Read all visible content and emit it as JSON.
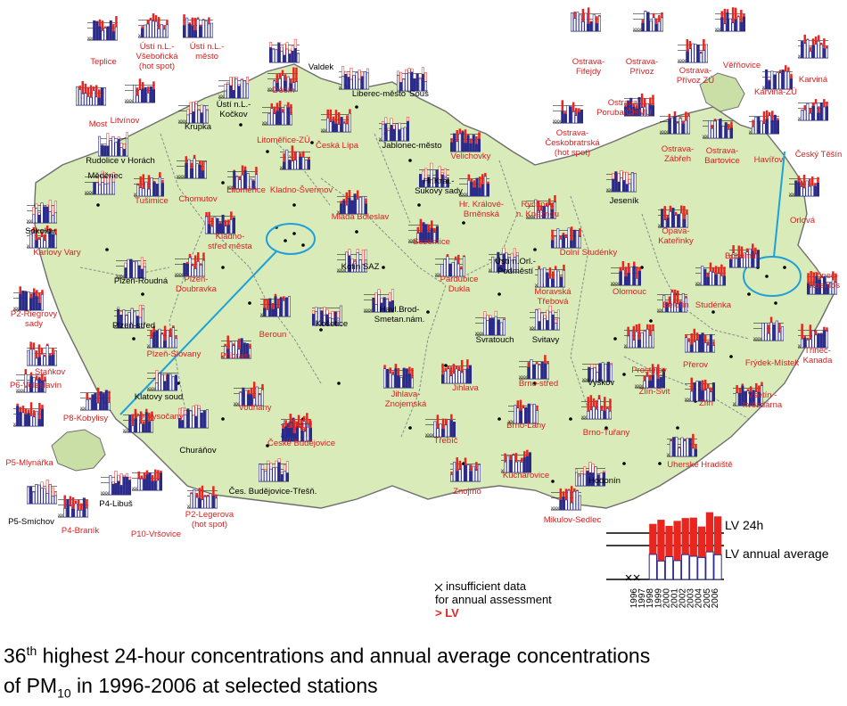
{
  "caption": {
    "line1_num": "36",
    "line1_sup": "th",
    "line1_rest": " highest 24-hour concentrations and annual average concentrations",
    "line2_pre": "of PM",
    "line2_sub": "10",
    "line2_rest": "  in 1996-2006 at selected stations"
  },
  "colors": {
    "land": "#d8ebb9",
    "border": "#6e6e6e",
    "exceed": "#e8261f",
    "below": "#ffffff",
    "annual": "#2a2a8a",
    "label_exceed": "#d62020",
    "label_normal": "#000000",
    "connector": "#1ea0d8"
  },
  "legend": {
    "lv24": "LV 24h",
    "lvannual": "LV annual average",
    "insufficient_line1": "insufficient data",
    "insufficient_line2": "for annual assessment",
    "exceed": "> LV",
    "years": [
      "1996",
      "1997",
      "1998",
      "1999",
      "2000",
      "2001",
      "2002",
      "2003",
      "2004",
      "2005",
      "2006"
    ]
  },
  "stations": [
    {
      "n": "Teplice",
      "e": true
    },
    {
      "n": "Ústí n.L.-\nVšebořická\n(hot spot)",
      "e": true
    },
    {
      "n": "Ústí n.L.-\nměsto",
      "e": true
    },
    {
      "n": "Valdek",
      "e": false
    },
    {
      "n": "Litvínov",
      "e": true
    },
    {
      "n": "Ústí n.L.-\nKočkov",
      "e": false
    },
    {
      "n": "Děčín",
      "e": true
    },
    {
      "n": "Liberec-město",
      "e": false
    },
    {
      "n": "Souš",
      "e": false
    },
    {
      "n": "Most",
      "e": true
    },
    {
      "n": "Krupka",
      "e": false
    },
    {
      "n": "Litoměřice-ZÚ",
      "e": true
    },
    {
      "n": "Česká Lípa",
      "e": true
    },
    {
      "n": "Jablonec-město",
      "e": false
    },
    {
      "n": "Rudolice v Horách",
      "e": false
    },
    {
      "n": "Velichovky",
      "e": true
    },
    {
      "n": "Měděnec",
      "e": false
    },
    {
      "n": "Chomutov",
      "e": true
    },
    {
      "n": "Litoměřice",
      "e": true
    },
    {
      "n": "Kladno-Švermov",
      "e": true
    },
    {
      "n": "Mladá Boleslav",
      "e": true
    },
    {
      "n": "Hr.Král.-\nSukovy sady",
      "e": false
    },
    {
      "n": "Hr. Králové-\nBrněnská",
      "e": true
    },
    {
      "n": "Rychnov\nn. Kněžnou",
      "e": true
    },
    {
      "n": "Sokolov",
      "e": false
    },
    {
      "n": "Tušimice",
      "e": true
    },
    {
      "n": "Karlovy Vary",
      "e": true
    },
    {
      "n": "Kladno-\nstřed města",
      "e": true
    },
    {
      "n": "Kolín SAZ",
      "e": false
    },
    {
      "n": "Sezemice",
      "e": true
    },
    {
      "n": "Pardubice\nDukla",
      "e": true
    },
    {
      "n": "Ústí n.Orl.-\nPodměstí",
      "e": false
    },
    {
      "n": "Moravská\nTřebová",
      "e": true
    },
    {
      "n": "Dolní Studénky",
      "e": true
    },
    {
      "n": "Plzeň-Roudná",
      "e": false
    },
    {
      "n": "Plzeň-\nDoubravka",
      "e": true
    },
    {
      "n": "P2-Riegrovy\nsady",
      "e": true
    },
    {
      "n": "Plzeň-střed",
      "e": false
    },
    {
      "n": "Beroun",
      "e": true
    },
    {
      "n": "Košetice",
      "e": false
    },
    {
      "n": "Havl.Brod-\nSmetan.nám.",
      "e": false
    },
    {
      "n": "Svratouch",
      "e": false
    },
    {
      "n": "Svitavy",
      "e": false
    },
    {
      "n": "Plzeň-Slovany",
      "e": true
    },
    {
      "n": "Příbram",
      "e": true
    },
    {
      "n": "Staňkov",
      "e": true
    },
    {
      "n": "P6-Veleslavín",
      "e": true
    },
    {
      "n": "Klatovy soud",
      "e": false
    },
    {
      "n": "P8-Kobylisy",
      "e": true
    },
    {
      "n": "Vodňany",
      "e": true
    },
    {
      "n": "Tábor",
      "e": true
    },
    {
      "n": "Jihlava-\nZnojemská",
      "e": true
    },
    {
      "n": "Jihlava",
      "e": true
    },
    {
      "n": "Brno-střed",
      "e": true
    },
    {
      "n": "Vyškov",
      "e": false
    },
    {
      "n": "P9-Vysočany",
      "e": true
    },
    {
      "n": "P5-Mlynářka",
      "e": true
    },
    {
      "n": "Churáňov",
      "e": false
    },
    {
      "n": "České Budějovice",
      "e": true
    },
    {
      "n": "Třebíč",
      "e": true
    },
    {
      "n": "Brno-Lány",
      "e": true
    },
    {
      "n": "Brno-Tuřany",
      "e": true
    },
    {
      "n": "Kuchařovice",
      "e": true
    },
    {
      "n": "Hodonín",
      "e": false
    },
    {
      "n": "P5-Smíchov",
      "e": false
    },
    {
      "n": "P4-Libuš",
      "e": false
    },
    {
      "n": "P4-Braník",
      "e": true
    },
    {
      "n": "P10-Vršovice",
      "e": true
    },
    {
      "n": "P2-Legerova\n(hot spot)",
      "e": true
    },
    {
      "n": "Čes. Budějovice-Třešň.",
      "e": false
    },
    {
      "n": "Znojmo",
      "e": true
    },
    {
      "n": "Mikulov-Sedlec",
      "e": true
    },
    {
      "n": "Jeseník",
      "e": false
    },
    {
      "n": "Orlová",
      "e": true
    },
    {
      "n": "Opava-\nKateřinky",
      "e": true
    },
    {
      "n": "Bohumín",
      "e": true
    },
    {
      "n": "Třinec-\nKosmos",
      "e": true
    },
    {
      "n": "Olomouc",
      "e": true
    },
    {
      "n": "Bělotín",
      "e": true
    },
    {
      "n": "Studénka",
      "e": true
    },
    {
      "n": "Třinec-\nKanada",
      "e": true
    },
    {
      "n": "Prostějov",
      "e": true
    },
    {
      "n": "Přerov",
      "e": true
    },
    {
      "n": "Frýdek-Místek",
      "e": true
    },
    {
      "n": "Zlín-Svit",
      "e": true
    },
    {
      "n": "Zlín",
      "e": true
    },
    {
      "n": "Vsetín -\nhvězdárna",
      "e": true
    },
    {
      "n": "Uherské Hradiště",
      "e": true
    },
    {
      "n": "Ostrava-\nFifejdy",
      "e": true
    },
    {
      "n": "Ostrava-\nPřívoz",
      "e": true
    },
    {
      "n": "Ostrava-\nPřívoz ZÚ",
      "e": true
    },
    {
      "n": "Věřňovice",
      "e": true
    },
    {
      "n": "Karviná",
      "e": true
    },
    {
      "n": "Karviná-ZÚ",
      "e": true
    },
    {
      "n": "Ostrava-\nPoruba/ČHMÚ",
      "e": true
    },
    {
      "n": "Ostrava-\nČeskobratrská\n(hot spot)",
      "e": true
    },
    {
      "n": "Ostrava-\nZábřeh",
      "e": true
    },
    {
      "n": "Ostrava-\nBartovice",
      "e": true
    },
    {
      "n": "Havířov",
      "e": true
    },
    {
      "n": "Český Těšín",
      "e": true
    }
  ]
}
